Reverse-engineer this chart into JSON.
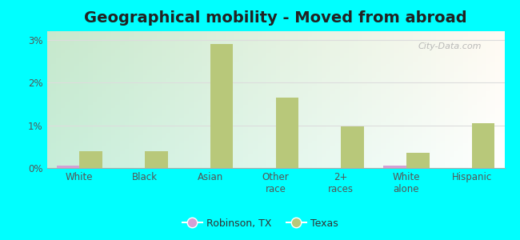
{
  "title": "Geographical mobility - Moved from abroad",
  "categories": [
    "White",
    "Black",
    "Asian",
    "Other\nrace",
    "2+\nraces",
    "White\nalone",
    "Hispanic"
  ],
  "robinson_values": [
    0.05,
    0.0,
    0.0,
    0.0,
    0.0,
    0.05,
    0.0
  ],
  "texas_values": [
    0.4,
    0.4,
    2.9,
    1.65,
    0.97,
    0.35,
    1.05
  ],
  "robinson_color": "#d4a0d4",
  "texas_color": "#b8c87a",
  "bar_width": 0.35,
  "ylim": [
    0,
    3.2
  ],
  "yticks": [
    0,
    1,
    2,
    3
  ],
  "ytick_labels": [
    "0%",
    "1%",
    "2%",
    "3%"
  ],
  "grid_color": "#dddddd",
  "title_fontsize": 14,
  "tick_fontsize": 8.5,
  "legend_robinson": "Robinson, TX",
  "legend_texas": "Texas",
  "outer_bg": "#00ffff",
  "watermark": "City-Data.com"
}
